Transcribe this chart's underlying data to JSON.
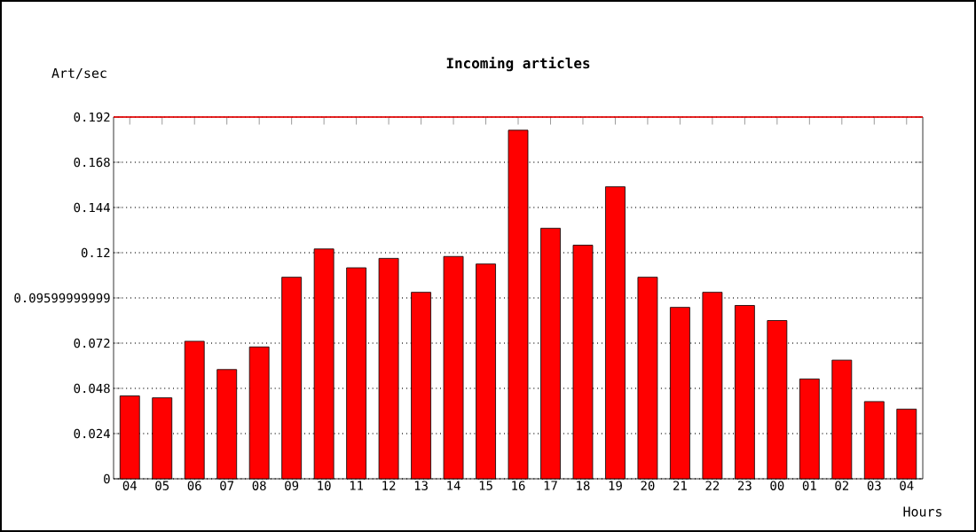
{
  "chart_data": {
    "type": "bar",
    "title": "Incoming articles",
    "ylabel": "Art/sec",
    "xlabel": "Hours",
    "categories": [
      "04",
      "05",
      "06",
      "07",
      "08",
      "09",
      "10",
      "11",
      "12",
      "13",
      "14",
      "15",
      "16",
      "17",
      "18",
      "19",
      "20",
      "21",
      "22",
      "23",
      "00",
      "01",
      "02",
      "03",
      "04"
    ],
    "values": [
      0.044,
      0.043,
      0.073,
      0.058,
      0.07,
      0.107,
      0.122,
      0.112,
      0.117,
      0.099,
      0.118,
      0.114,
      0.185,
      0.133,
      0.124,
      0.155,
      0.107,
      0.091,
      0.099,
      0.092,
      0.084,
      0.053,
      0.063,
      0.041,
      0.037
    ],
    "color": "#ff0000",
    "ylim": [
      0,
      0.192
    ],
    "yticks": [
      0,
      0.024,
      0.048,
      0.072,
      0.09599999999,
      0.12,
      0.144,
      0.168,
      0.192
    ],
    "grid": "y",
    "line_style": "dotted",
    "ref_lines": [
      {
        "axis": "y",
        "value": 0.192,
        "color": "#ff0000"
      }
    ]
  }
}
